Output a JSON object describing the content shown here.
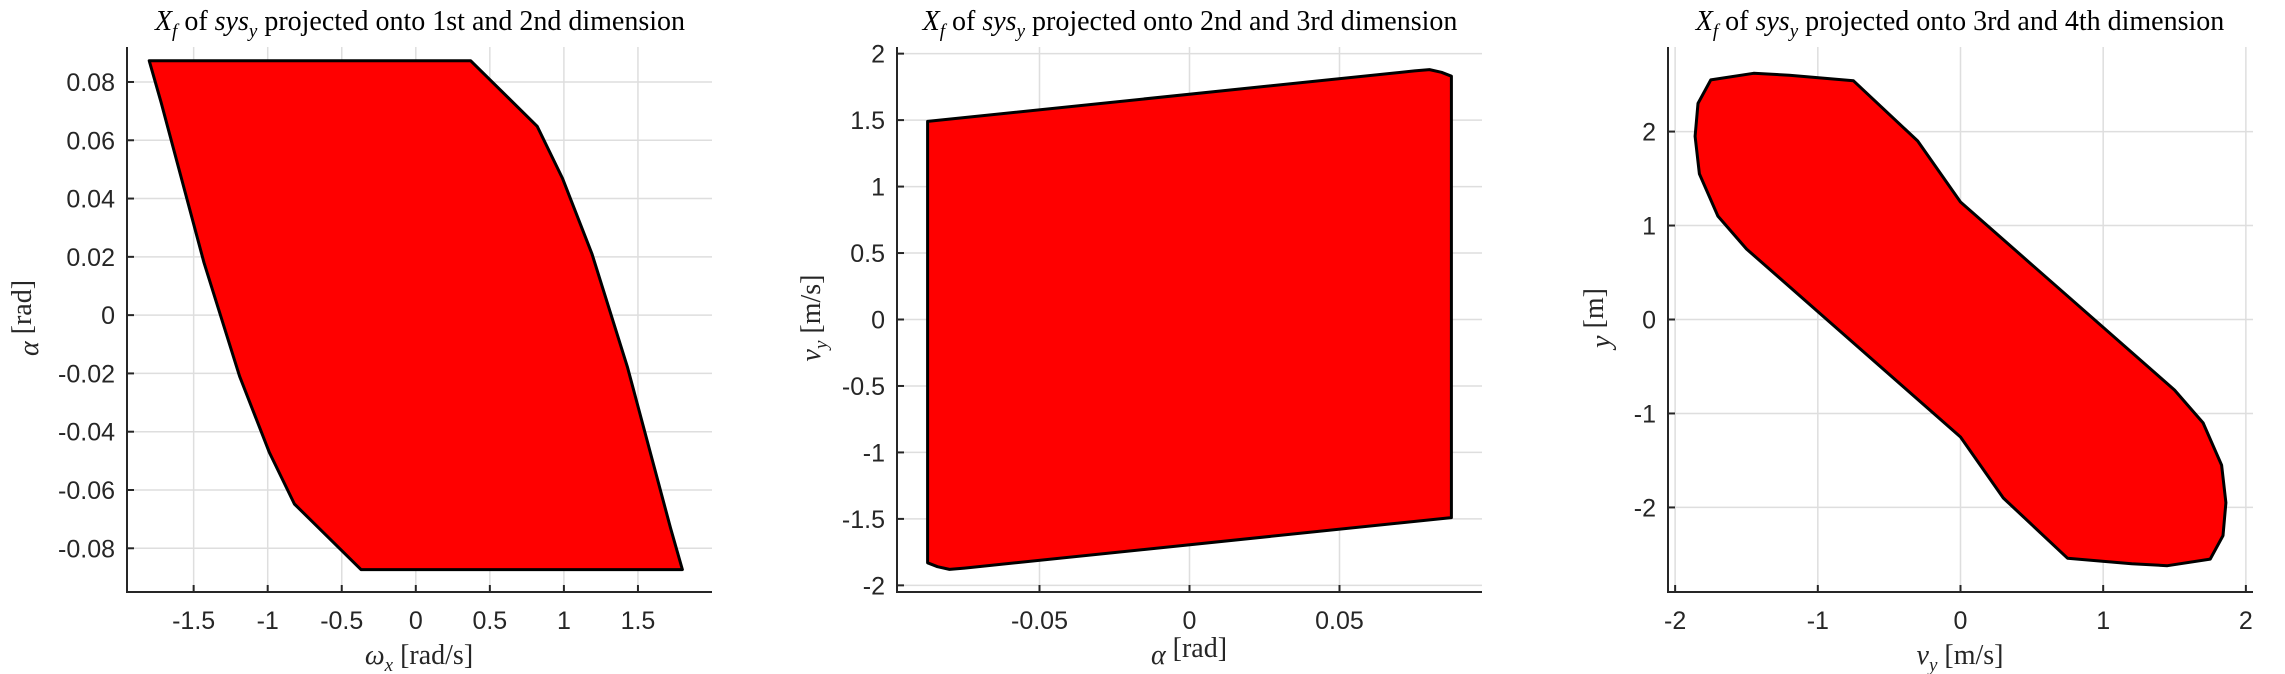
{
  "colors": {
    "fill": "#ff0000",
    "edge": "#000000",
    "grid": "#dedede",
    "axis": "#262626"
  },
  "chart_data": [
    {
      "type": "area",
      "title": "X_f of sys_y projected onto 1st and 2nd dimension",
      "title_parts": {
        "main": "X",
        "main_sub": "f",
        "of": " of ",
        "sys": "sys",
        "sys_sub": "y",
        "rest": " projected onto 1st and 2nd dimension"
      },
      "xlabel": "ω_x [rad/s]",
      "xlabel_parts": {
        "sym": "ω",
        "sub": "x",
        "unit": " [rad/s]"
      },
      "ylabel": "α [rad]",
      "ylabel_parts": {
        "sym": "α",
        "sub": "",
        "unit": " [rad]"
      },
      "xlim": [
        -1.95,
        2.0
      ],
      "ylim": [
        -0.095,
        0.092
      ],
      "xticks": [
        -1.5,
        -1,
        -0.5,
        0,
        0.5,
        1,
        1.5
      ],
      "xtick_labels": [
        "-1.5",
        "-1",
        "-0.5",
        "0",
        "0.5",
        "1",
        "1.5"
      ],
      "yticks": [
        -0.08,
        -0.06,
        -0.04,
        -0.02,
        0,
        0.02,
        0.04,
        0.06,
        0.08
      ],
      "ytick_labels": [
        "-0.08",
        "-0.06",
        "-0.04",
        "-0.02",
        "0",
        "0.02",
        "0.04",
        "0.06",
        "0.08"
      ],
      "grid": true,
      "polygon": [
        [
          -1.8,
          0.0873
        ],
        [
          0.37,
          0.0873
        ],
        [
          0.82,
          0.0648
        ],
        [
          0.99,
          0.047
        ],
        [
          1.19,
          0.021
        ],
        [
          1.43,
          -0.018
        ],
        [
          1.72,
          -0.073
        ],
        [
          1.8,
          -0.0873
        ],
        [
          -0.37,
          -0.0873
        ],
        [
          -0.82,
          -0.0648
        ],
        [
          -0.99,
          -0.047
        ],
        [
          -1.19,
          -0.021
        ],
        [
          -1.43,
          0.018
        ],
        [
          -1.72,
          0.073
        ]
      ]
    },
    {
      "type": "area",
      "title": "X_f of sys_y projected onto 2nd and 3rd dimension",
      "title_parts": {
        "main": "X",
        "main_sub": "f",
        "of": " of ",
        "sys": "sys",
        "sys_sub": "y",
        "rest": " projected onto 2nd and 3rd dimension"
      },
      "xlabel": "α [rad]",
      "xlabel_parts": {
        "sym": "α",
        "sub": "",
        "unit": " [rad]"
      },
      "ylabel": "v_y [m/s]",
      "ylabel_parts": {
        "sym": "v",
        "sub": "y",
        "unit": " [m/s]"
      },
      "xlim": [
        -0.0975,
        0.0975
      ],
      "ylim": [
        -2.05,
        2.05
      ],
      "xticks": [
        -0.05,
        0,
        0.05
      ],
      "xtick_labels": [
        "-0.05",
        "0",
        "0.05"
      ],
      "yticks": [
        -2,
        -1.5,
        -1,
        -0.5,
        0,
        0.5,
        1,
        1.5,
        2
      ],
      "ytick_labels": [
        "-2",
        "-1.5",
        "-1",
        "-0.5",
        "0",
        "0.5",
        "1",
        "1.5",
        "2"
      ],
      "grid": true,
      "polygon": [
        [
          -0.0873,
          1.49
        ],
        [
          0.075,
          1.87
        ],
        [
          0.08,
          1.88
        ],
        [
          0.084,
          1.86
        ],
        [
          0.0873,
          1.83
        ],
        [
          0.0873,
          -1.49
        ],
        [
          -0.075,
          -1.87
        ],
        [
          -0.08,
          -1.88
        ],
        [
          -0.084,
          -1.86
        ],
        [
          -0.0873,
          -1.83
        ]
      ]
    },
    {
      "type": "area",
      "title": "X_f of sys_y projected onto 3rd and 4th dimension",
      "title_parts": {
        "main": "X",
        "main_sub": "f",
        "of": " of ",
        "sys": "sys",
        "sys_sub": "y",
        "rest": " projected onto 3rd and 4th dimension"
      },
      "xlabel": "v_y [m/s]",
      "xlabel_parts": {
        "sym": "v",
        "sub": "y",
        "unit": " [m/s]"
      },
      "ylabel": "y [m]",
      "ylabel_parts": {
        "sym": "y",
        "sub": "",
        "unit": " [m]"
      },
      "xlim": [
        -2.05,
        2.05
      ],
      "ylim": [
        -2.9,
        2.9
      ],
      "xticks": [
        -2,
        -1,
        0,
        1,
        2
      ],
      "xtick_labels": [
        "-2",
        "-1",
        "0",
        "1",
        "2"
      ],
      "yticks": [
        -2,
        -1,
        0,
        1,
        2
      ],
      "ytick_labels": [
        "-2",
        "-1",
        "0",
        "1",
        "2"
      ],
      "grid": true,
      "polygon": [
        [
          -0.75,
          2.54
        ],
        [
          -0.3,
          1.9
        ],
        [
          0.0,
          1.25
        ],
        [
          1.5,
          -0.75
        ],
        [
          1.7,
          -1.1
        ],
        [
          1.83,
          -1.55
        ],
        [
          1.86,
          -1.95
        ],
        [
          1.84,
          -2.3
        ],
        [
          1.75,
          -2.55
        ],
        [
          1.45,
          -2.62
        ],
        [
          1.2,
          -2.6
        ],
        [
          0.75,
          -2.54
        ],
        [
          0.3,
          -1.9
        ],
        [
          0.0,
          -1.25
        ],
        [
          -1.5,
          0.75
        ],
        [
          -1.7,
          1.1
        ],
        [
          -1.83,
          1.55
        ],
        [
          -1.86,
          1.95
        ],
        [
          -1.84,
          2.3
        ],
        [
          -1.75,
          2.55
        ],
        [
          -1.45,
          2.62
        ],
        [
          -1.2,
          2.6
        ]
      ]
    }
  ]
}
